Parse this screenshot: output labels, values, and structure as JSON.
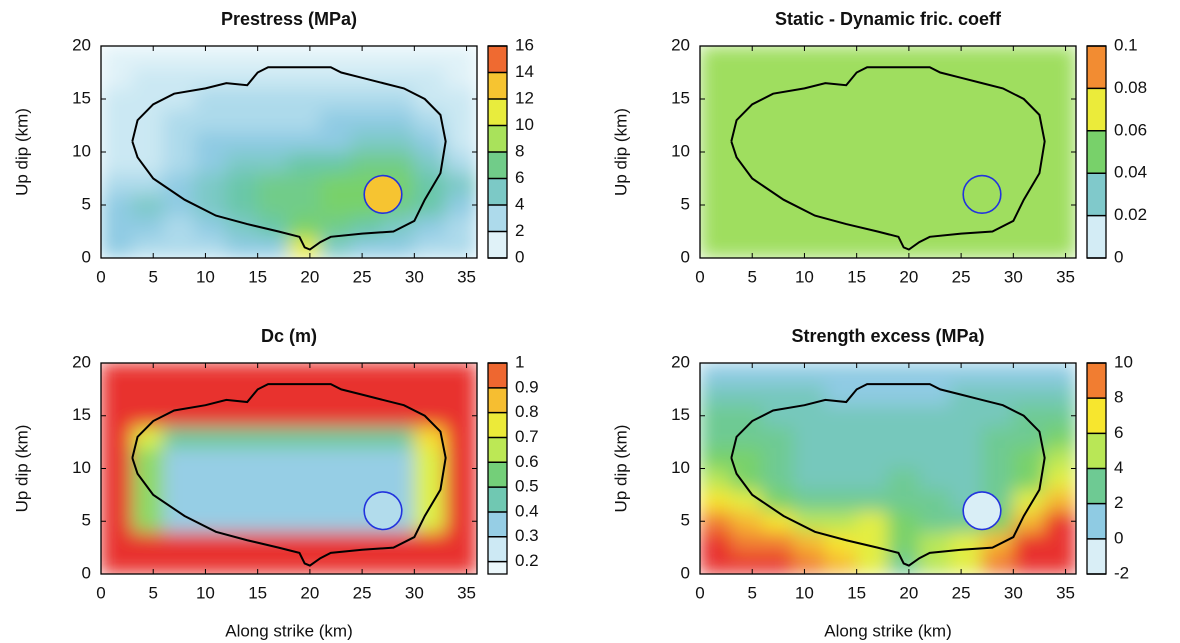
{
  "rupture_contour": {
    "x": [
      3,
      3.5,
      5,
      7,
      10,
      12,
      14,
      15,
      16,
      19,
      22,
      23,
      25,
      27,
      29,
      31,
      32.5,
      33,
      32.5,
      31,
      30,
      28,
      25,
      22,
      21,
      20,
      19.5,
      19,
      17,
      14,
      11,
      8,
      5,
      3.5,
      3
    ],
    "y": [
      11,
      13,
      14.5,
      15.5,
      16,
      16.5,
      16.3,
      17.5,
      18,
      18,
      18,
      17.5,
      17,
      16.5,
      16,
      15,
      13.5,
      11,
      8,
      5.5,
      3.5,
      2.5,
      2.3,
      2,
      1.5,
      0.8,
      1,
      2,
      2.5,
      3.2,
      4,
      5.5,
      7.5,
      9.5,
      11
    ]
  },
  "nucleation_patch": {
    "x": 27,
    "y": 6,
    "radius": 1.8
  },
  "chart_data": [
    {
      "type": "heatmap",
      "title": "Prestress (MPa)",
      "ylabel": "Up dip (km)",
      "xlim": [
        0,
        36
      ],
      "ylim": [
        0,
        20
      ],
      "xticks": [
        0,
        5,
        10,
        15,
        20,
        25,
        30,
        35
      ],
      "yticks": [
        0,
        5,
        10,
        15,
        20
      ],
      "clim": [
        0,
        16
      ],
      "cticks": [
        0,
        2,
        4,
        6,
        8,
        10,
        12,
        14,
        16
      ],
      "nucleation_value": 13,
      "colormap": [
        "#f5fbfd",
        "#cbe8f3",
        "#8fcbe3",
        "#69c7a8",
        "#78d16a",
        "#d9f24c",
        "#f7e62e",
        "#f5a233",
        "#e8322e"
      ],
      "x": [
        1.5,
        4.5,
        7.5,
        10.5,
        13.5,
        16.5,
        19.5,
        22.5,
        25.5,
        28.5,
        31.5,
        34.5
      ],
      "y": [
        1,
        3,
        5,
        7,
        9,
        11,
        13,
        15,
        17,
        19
      ],
      "z": [
        [
          4,
          3,
          3,
          3,
          4,
          4,
          11,
          5,
          4,
          4,
          3,
          3
        ],
        [
          4,
          4,
          3,
          4,
          5,
          6,
          8,
          7,
          6,
          5,
          4,
          3
        ],
        [
          4,
          5,
          4,
          5,
          6,
          7,
          7,
          8,
          8,
          7,
          6,
          4
        ],
        [
          3,
          3,
          4,
          5,
          6,
          7,
          7,
          8,
          8,
          8,
          6,
          5
        ],
        [
          2,
          2,
          3,
          4,
          5,
          5,
          6,
          6,
          7,
          7,
          5,
          3
        ],
        [
          2,
          2,
          3,
          4,
          4,
          4,
          4,
          4,
          5,
          5,
          4,
          2
        ],
        [
          2,
          2,
          3,
          3,
          3,
          3,
          3,
          4,
          4,
          4,
          3,
          2
        ],
        [
          2,
          2,
          2,
          3,
          3,
          3,
          3,
          3,
          3,
          3,
          2,
          2
        ],
        [
          1,
          2,
          2,
          2,
          2,
          2,
          2,
          2,
          2,
          2,
          2,
          1
        ],
        [
          1,
          1,
          1,
          1,
          1,
          1,
          1,
          1,
          1,
          1,
          1,
          1
        ]
      ]
    },
    {
      "type": "heatmap",
      "title": "Static - Dynamic fric. coeff",
      "ylabel": "Up dip (km)",
      "xlim": [
        0,
        36
      ],
      "ylim": [
        0,
        20
      ],
      "xticks": [
        0,
        5,
        10,
        15,
        20,
        25,
        30,
        35
      ],
      "yticks": [
        0,
        5,
        10,
        15,
        20
      ],
      "clim": [
        0,
        0.1
      ],
      "cticks": [
        0,
        0.02,
        0.04,
        0.06,
        0.08,
        0.1
      ],
      "nucleation_value": 0.055,
      "colormap": [
        "#f5fbfd",
        "#cbe8f3",
        "#8fcbe3",
        "#69c7a8",
        "#78d16a",
        "#d9f24c",
        "#f7e62e",
        "#f5a233",
        "#e8322e"
      ],
      "x": [
        1.5,
        4.5,
        7.5,
        10.5,
        13.5,
        16.5,
        19.5,
        22.5,
        25.5,
        28.5,
        31.5,
        34.5
      ],
      "y": [
        1,
        3,
        5,
        7,
        9,
        11,
        13,
        15,
        17,
        19
      ],
      "z": [
        [
          0.055,
          0.055,
          0.055,
          0.055,
          0.055,
          0.055,
          0.055,
          0.055,
          0.055,
          0.055,
          0.055,
          0.055
        ],
        [
          0.055,
          0.055,
          0.055,
          0.055,
          0.055,
          0.055,
          0.055,
          0.055,
          0.055,
          0.055,
          0.055,
          0.055
        ],
        [
          0.055,
          0.055,
          0.055,
          0.055,
          0.055,
          0.055,
          0.055,
          0.055,
          0.055,
          0.055,
          0.055,
          0.055
        ],
        [
          0.055,
          0.055,
          0.055,
          0.055,
          0.055,
          0.055,
          0.055,
          0.055,
          0.055,
          0.055,
          0.055,
          0.055
        ],
        [
          0.055,
          0.055,
          0.055,
          0.055,
          0.055,
          0.055,
          0.055,
          0.055,
          0.055,
          0.055,
          0.055,
          0.055
        ],
        [
          0.055,
          0.055,
          0.055,
          0.055,
          0.055,
          0.055,
          0.055,
          0.055,
          0.055,
          0.055,
          0.055,
          0.055
        ],
        [
          0.055,
          0.055,
          0.055,
          0.055,
          0.055,
          0.055,
          0.055,
          0.055,
          0.055,
          0.055,
          0.055,
          0.055
        ],
        [
          0.055,
          0.055,
          0.055,
          0.055,
          0.055,
          0.055,
          0.055,
          0.055,
          0.055,
          0.055,
          0.055,
          0.055
        ],
        [
          0.055,
          0.055,
          0.055,
          0.055,
          0.055,
          0.055,
          0.055,
          0.055,
          0.055,
          0.055,
          0.055,
          0.055
        ],
        [
          0.055,
          0.055,
          0.055,
          0.055,
          0.055,
          0.055,
          0.055,
          0.055,
          0.055,
          0.055,
          0.055,
          0.055
        ]
      ]
    },
    {
      "type": "heatmap",
      "title": "Dc (m)",
      "xlabel": "Along strike (km)",
      "ylabel": "Up dip (km)",
      "xlim": [
        0,
        36
      ],
      "ylim": [
        0,
        20
      ],
      "xticks": [
        0,
        5,
        10,
        15,
        20,
        25,
        30,
        35
      ],
      "yticks": [
        0,
        5,
        10,
        15,
        20
      ],
      "clim": [
        0.15,
        1
      ],
      "cticks": [
        0.2,
        0.3,
        0.4,
        0.5,
        0.6,
        0.7,
        0.8,
        0.9,
        1
      ],
      "nucleation_value": 0.3,
      "colormap": [
        "#f5fbfd",
        "#cbe8f3",
        "#8fcbe3",
        "#69c7a8",
        "#78d16a",
        "#d9f24c",
        "#f7e62e",
        "#f5a233",
        "#e8322e"
      ],
      "x": [
        1.5,
        4.5,
        7.5,
        10.5,
        13.5,
        16.5,
        19.5,
        22.5,
        25.5,
        28.5,
        31.5,
        34.5
      ],
      "y": [
        1,
        3,
        5,
        7,
        9,
        11,
        13,
        15,
        17,
        19
      ],
      "z": [
        [
          1,
          1,
          1,
          1,
          1,
          1,
          1,
          1,
          1,
          1,
          1,
          1
        ],
        [
          1,
          1,
          1,
          1,
          1,
          1,
          1,
          1,
          1,
          1,
          1,
          1
        ],
        [
          1,
          0.6,
          0.35,
          0.35,
          0.35,
          0.35,
          0.35,
          0.35,
          0.35,
          0.35,
          0.7,
          1
        ],
        [
          1,
          0.6,
          0.35,
          0.35,
          0.35,
          0.35,
          0.35,
          0.35,
          0.35,
          0.35,
          0.7,
          1
        ],
        [
          1,
          0.6,
          0.35,
          0.35,
          0.35,
          0.35,
          0.35,
          0.35,
          0.35,
          0.35,
          0.7,
          1
        ],
        [
          1,
          0.6,
          0.35,
          0.35,
          0.35,
          0.35,
          0.35,
          0.35,
          0.35,
          0.35,
          0.7,
          1
        ],
        [
          1,
          0.7,
          0.5,
          0.5,
          0.5,
          0.5,
          0.5,
          0.5,
          0.5,
          0.5,
          0.8,
          1
        ],
        [
          1,
          1,
          1,
          1,
          1,
          1,
          1,
          1,
          1,
          1,
          1,
          1
        ],
        [
          1,
          1,
          1,
          1,
          1,
          1,
          1,
          1,
          1,
          1,
          1,
          1
        ],
        [
          1,
          1,
          1,
          1,
          1,
          1,
          1,
          1,
          1,
          1,
          1,
          1
        ]
      ]
    },
    {
      "type": "heatmap",
      "title": "Strength excess (MPa)",
      "xlabel": "Along strike (km)",
      "ylabel": "Up dip (km)",
      "xlim": [
        0,
        36
      ],
      "ylim": [
        0,
        20
      ],
      "xticks": [
        0,
        5,
        10,
        15,
        20,
        25,
        30,
        35
      ],
      "yticks": [
        0,
        5,
        10,
        15,
        20
      ],
      "clim": [
        -2,
        10
      ],
      "cticks": [
        -2,
        0,
        2,
        4,
        6,
        8,
        10
      ],
      "nucleation_value": -1,
      "colormap": [
        "#f5fbfd",
        "#cbe8f3",
        "#8fcbe3",
        "#69c7a8",
        "#78d16a",
        "#d9f24c",
        "#f7e62e",
        "#f5a233",
        "#e8322e"
      ],
      "x": [
        1.5,
        4.5,
        7.5,
        10.5,
        13.5,
        16.5,
        19.5,
        22.5,
        25.5,
        28.5,
        31.5,
        34.5
      ],
      "y": [
        1,
        3,
        5,
        7,
        9,
        11,
        13,
        15,
        17,
        19
      ],
      "z": [
        [
          10,
          10,
          10,
          9,
          8,
          6,
          3,
          5,
          6,
          9,
          10,
          10
        ],
        [
          10,
          9,
          9,
          8,
          7,
          6,
          4,
          5,
          6,
          8,
          10,
          10
        ],
        [
          9,
          8,
          7,
          5,
          5,
          6,
          4,
          3,
          3,
          4,
          8,
          10
        ],
        [
          7,
          6,
          4,
          3,
          3,
          3,
          3,
          3,
          2,
          3,
          6,
          8
        ],
        [
          5,
          4,
          3,
          2,
          2,
          2,
          3,
          2,
          2,
          3,
          4,
          6
        ],
        [
          4,
          4,
          3,
          2,
          2,
          2,
          2,
          2,
          2,
          3,
          4,
          5
        ],
        [
          3,
          3,
          3,
          2,
          2,
          2,
          2,
          2,
          2,
          3,
          3,
          4
        ],
        [
          3,
          3,
          2,
          2,
          2,
          2,
          2,
          2,
          2,
          2,
          3,
          3
        ],
        [
          2,
          2,
          2,
          2,
          1,
          1,
          1,
          1,
          2,
          2,
          2,
          2
        ],
        [
          1,
          1,
          1,
          1,
          1,
          1,
          1,
          1,
          1,
          1,
          1,
          1
        ]
      ]
    }
  ]
}
